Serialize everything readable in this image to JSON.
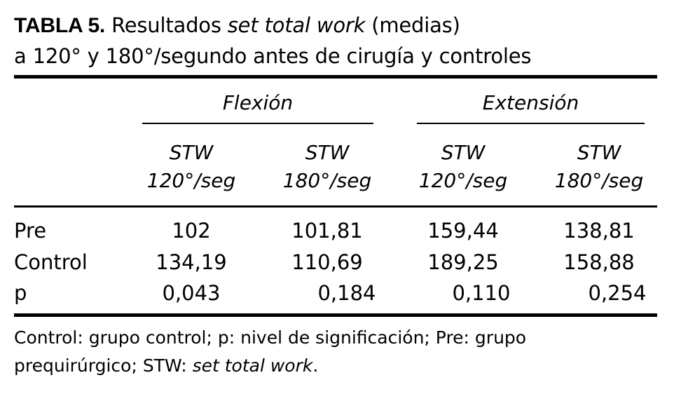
{
  "title": {
    "number": "TABLA 5.",
    "text_before_italic": "Resultados ",
    "italic": "set total work",
    "text_after_italic": " (medias)",
    "line2": "a 120° y 180°/segundo antes de cirugía y controles"
  },
  "table": {
    "groups": [
      "Flexión",
      "Extensión"
    ],
    "columns": [
      {
        "line1": "STW",
        "line2": "120°/seg"
      },
      {
        "line1": "STW",
        "line2": "180°/seg"
      },
      {
        "line1": "STW",
        "line2": "120°/seg"
      },
      {
        "line1": "STW",
        "line2": "180°/seg"
      }
    ],
    "rows": [
      {
        "label": "Pre",
        "values": [
          "102",
          "101,81",
          "159,44",
          "138,81"
        ]
      },
      {
        "label": "Control",
        "values": [
          "134,19",
          "110,69",
          "189,25",
          "158,88"
        ]
      },
      {
        "label": "p",
        "values": [
          "0,043",
          "0,184",
          "0,110",
          "0,254"
        ]
      }
    ]
  },
  "footnote": {
    "line1": "Control: grupo control; p: nivel de significación; Pre: grupo",
    "line2_plain": "prequirúrgico; STW: ",
    "line2_italic": "set total work",
    "line2_end": "."
  }
}
